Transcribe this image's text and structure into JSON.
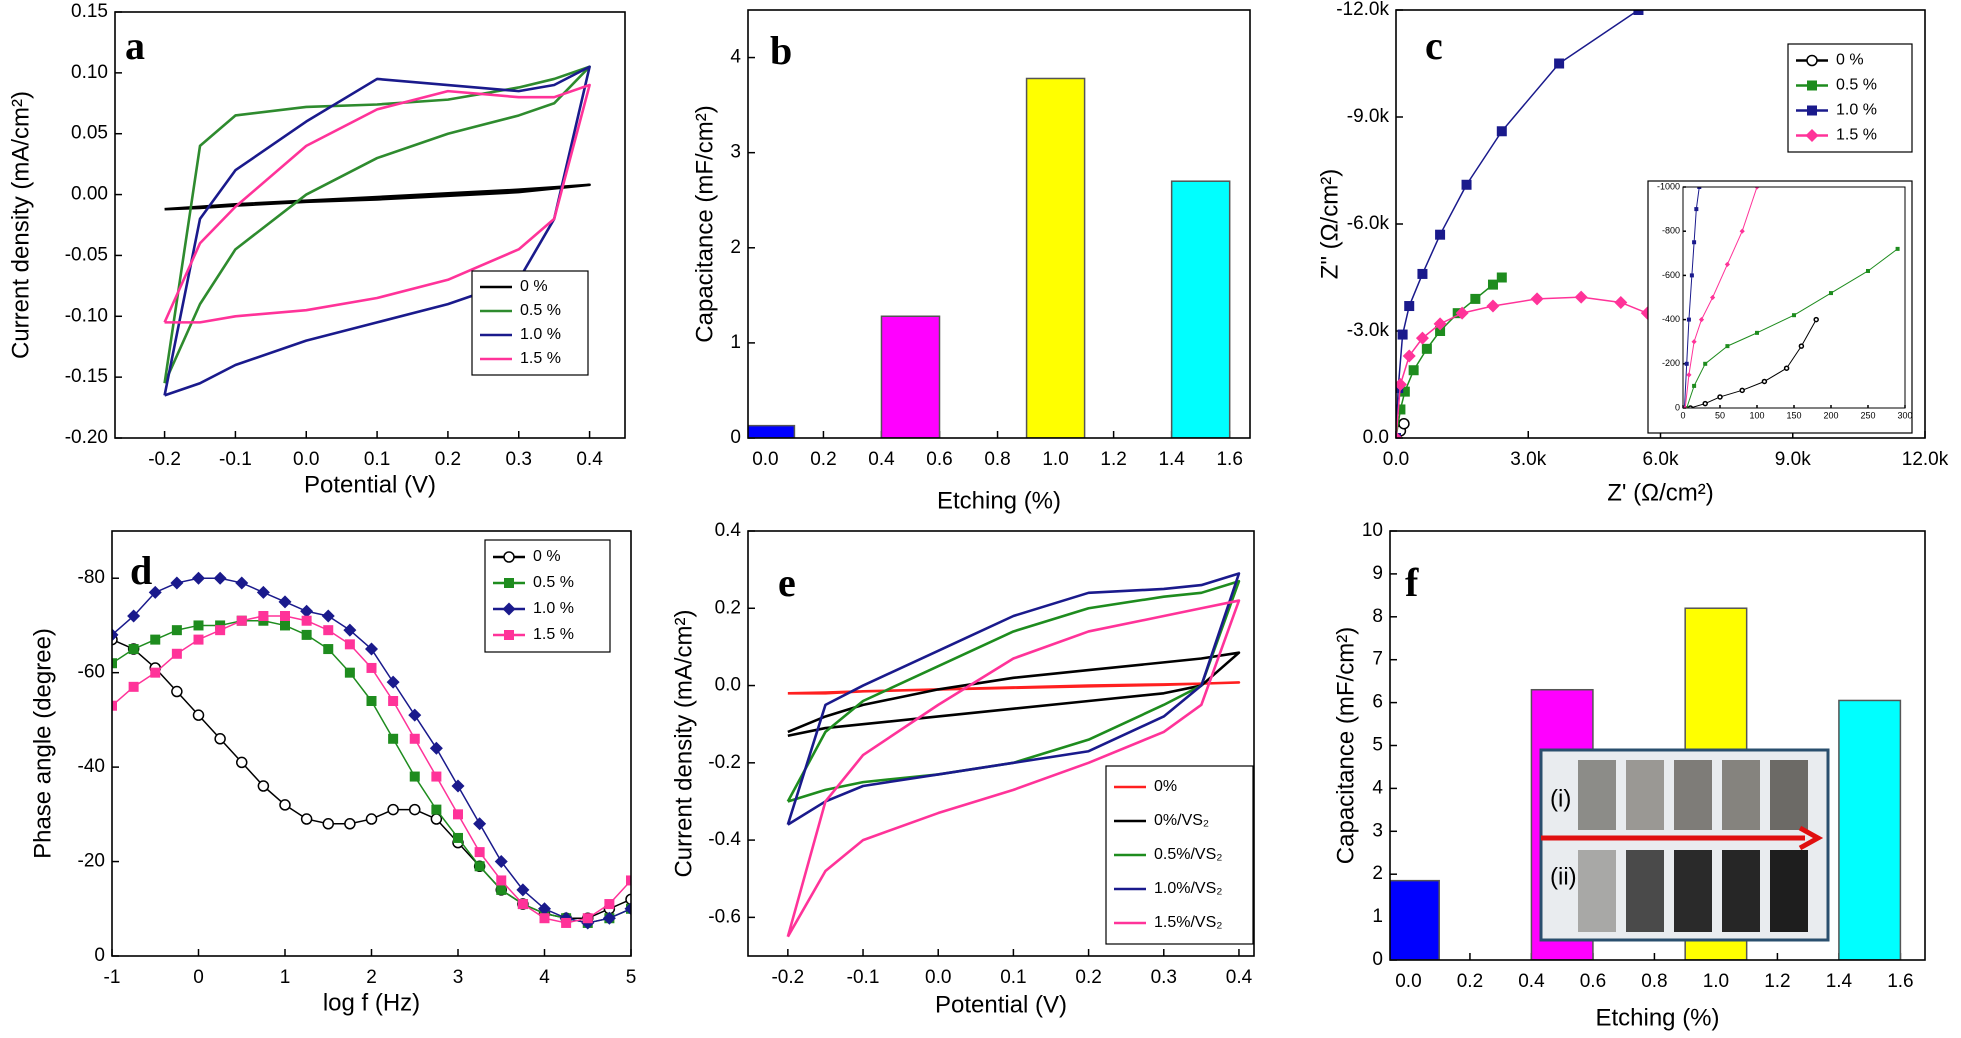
{
  "chart_data": [
    {
      "type": "line",
      "label": "a",
      "xlabel": "Potential (V)",
      "ylabel": "Current density (mA/cm²)",
      "xlim": [
        -0.27,
        0.45
      ],
      "ylim": [
        -0.2,
        0.15
      ],
      "xticks": [
        -0.2,
        -0.1,
        {
          "value": 0,
          "label": "0.0"
        },
        0.1,
        0.2,
        0.3,
        0.4
      ],
      "yticks": [
        {
          "value": -0.2,
          "label": "-0.20"
        },
        -0.15,
        {
          "value": -0.1,
          "label": "-0.10"
        },
        -0.05,
        {
          "value": 0,
          "label": "0.00"
        },
        0.05,
        {
          "value": 0.1,
          "label": "0.10"
        },
        0.15
      ],
      "legend": "lower right",
      "x": [
        -0.2,
        -0.15,
        -0.1,
        0,
        0.1,
        0.2,
        0.3,
        0.35,
        0.4,
        0.35,
        0.3,
        0.2,
        0.1,
        0,
        -0.1,
        -0.15,
        -0.2
      ],
      "series": [
        {
          "name": "0 %",
          "color": "#000000",
          "values": [
            -0.012,
            -0.01,
            -0.008,
            -0.005,
            -0.002,
            0.001,
            0.004,
            0.006,
            0.008,
            0.005,
            0.002,
            -0.001,
            -0.004,
            -0.006,
            -0.009,
            -0.011,
            -0.012
          ]
        },
        {
          "name": "0.5 %",
          "color": "#2e8b2e",
          "values": [
            -0.155,
            0.04,
            0.065,
            0.072,
            0.074,
            0.078,
            0.088,
            0.095,
            0.105,
            0.075,
            0.065,
            0.05,
            0.03,
            0.0,
            -0.045,
            -0.09,
            -0.155
          ]
        },
        {
          "name": "1.0 %",
          "color": "#1a1a8c",
          "values": [
            -0.165,
            -0.02,
            0.02,
            0.06,
            0.095,
            0.09,
            0.085,
            0.09,
            0.105,
            -0.02,
            -0.07,
            -0.09,
            -0.105,
            -0.12,
            -0.14,
            -0.155,
            -0.165
          ]
        },
        {
          "name": "1.5 %",
          "color": "#ff3399",
          "values": [
            -0.105,
            -0.105,
            -0.1,
            -0.095,
            -0.085,
            -0.07,
            -0.045,
            -0.02,
            0.09,
            0.08,
            0.08,
            0.085,
            0.07,
            0.04,
            -0.01,
            -0.04,
            -0.105
          ]
        }
      ]
    },
    {
      "type": "bar",
      "label": "b",
      "xlabel": "Etching (%)",
      "ylabel": "Capacitance (mF/cm²)",
      "xlim": [
        -0.06,
        1.67
      ],
      "ylim": [
        0,
        4.5
      ],
      "xticks": [
        {
          "value": 0,
          "label": "0.0"
        },
        0.2,
        0.4,
        0.6,
        0.8,
        {
          "value": 1,
          "label": "1.0"
        },
        1.2,
        1.4,
        1.6
      ],
      "yticks": [
        0,
        1,
        2,
        3,
        4
      ],
      "x": [
        0,
        0.5,
        1.0,
        1.5
      ],
      "values": [
        0.13,
        1.28,
        3.78,
        2.7
      ],
      "colors": [
        "#0000ff",
        "#ff00ff",
        "#ffff00",
        "#00ffff"
      ]
    },
    {
      "type": "line",
      "label": "c",
      "xlabel": "Z' (Ω/cm²)",
      "ylabel": "Z\" (Ω/cm²)",
      "xlim": [
        0,
        12000
      ],
      "ylim": [
        0,
        -12000
      ],
      "xticks": [
        {
          "value": 0,
          "label": "0.0"
        },
        {
          "value": 3000,
          "label": "3.0k"
        },
        {
          "value": 6000,
          "label": "6.0k"
        },
        {
          "value": 9000,
          "label": "9.0k"
        },
        {
          "value": 12000,
          "label": "12.0k"
        }
      ],
      "yticks": [
        {
          "value": 0,
          "label": "0.0"
        },
        {
          "value": -3000,
          "label": "-3.0k"
        },
        {
          "value": -6000,
          "label": "-6.0k"
        },
        {
          "value": -9000,
          "label": "-9.0k"
        },
        {
          "value": -12000,
          "label": "-12.0k"
        }
      ],
      "legend": "upper right",
      "series": [
        {
          "name": "0 %",
          "color": "#000000",
          "marker": "circle",
          "x": [
            0,
            100,
            180
          ],
          "values": [
            0,
            -200,
            -400
          ]
        },
        {
          "name": "0.5 %",
          "color": "#1e8c1e",
          "marker": "square",
          "x": [
            0,
            100,
            200,
            400,
            700,
            1000,
            1400,
            1800,
            2200,
            2400
          ],
          "values": [
            0,
            -800,
            -1300,
            -1900,
            -2500,
            -3000,
            -3500,
            -3900,
            -4300,
            -4500
          ]
        },
        {
          "name": "1.0 %",
          "color": "#1a1a8c",
          "marker": "square",
          "x": [
            0,
            50,
            150,
            300,
            600,
            1000,
            1600,
            2400,
            3700,
            5500
          ],
          "values": [
            0,
            -1400,
            -2900,
            -3700,
            -4600,
            -5700,
            -7100,
            -8600,
            -10500,
            -12000
          ]
        },
        {
          "name": "1.5 %",
          "color": "#ff3399",
          "marker": "diamond",
          "x": [
            0,
            100,
            300,
            600,
            1000,
            1500,
            2200,
            3200,
            4200,
            5100,
            5700
          ],
          "values": [
            0,
            -1500,
            -2300,
            -2800,
            -3200,
            -3500,
            -3700,
            -3900,
            -3950,
            -3800,
            -3500
          ]
        }
      ],
      "inset": {
        "xlim": [
          0,
          300
        ],
        "ylim": [
          0,
          -1000
        ],
        "xticks": [
          0,
          50,
          100,
          150,
          200,
          250,
          300
        ],
        "yticks": [
          0,
          -200,
          -400,
          -600,
          -800,
          -1000
        ],
        "series": [
          {
            "color": "#000000",
            "marker": "circle",
            "x": [
              10,
              30,
              50,
              80,
              110,
              140,
              160,
              180
            ],
            "values": [
              0,
              -20,
              -50,
              -80,
              -120,
              -180,
              -280,
              -400
            ]
          },
          {
            "color": "#1e8c1e",
            "marker": "square",
            "x": [
              5,
              15,
              30,
              60,
              100,
              150,
              200,
              250,
              290
            ],
            "values": [
              0,
              -100,
              -200,
              -280,
              -340,
              -420,
              -520,
              -620,
              -720
            ]
          },
          {
            "color": "#1a1a8c",
            "marker": "square",
            "x": [
              2,
              5,
              8,
              12,
              15,
              18,
              22
            ],
            "values": [
              0,
              -200,
              -400,
              -600,
              -750,
              -900,
              -1000
            ]
          },
          {
            "color": "#ff3399",
            "marker": "diamond",
            "x": [
              3,
              8,
              15,
              25,
              40,
              60,
              80,
              100
            ],
            "values": [
              0,
              -150,
              -300,
              -400,
              -500,
              -650,
              -800,
              -1000
            ]
          }
        ]
      }
    },
    {
      "type": "line",
      "label": "d",
      "xlabel": "log f (Hz)",
      "ylabel": "Phase angle (degree)",
      "xlim": [
        -1,
        5
      ],
      "ylim": [
        0,
        -90
      ],
      "xticks": [
        -1,
        0,
        1,
        2,
        3,
        4,
        5
      ],
      "yticks": [
        0,
        -20,
        -40,
        -60,
        -80
      ],
      "legend": "upper right",
      "x": [
        -1,
        -0.75,
        -0.5,
        -0.25,
        0,
        0.25,
        0.5,
        0.75,
        1,
        1.25,
        1.5,
        1.75,
        2,
        2.25,
        2.5,
        2.75,
        3,
        3.25,
        3.5,
        3.75,
        4,
        4.25,
        4.5,
        4.75,
        5
      ],
      "series": [
        {
          "name": "0 %",
          "color": "#000000",
          "marker": "circle",
          "values": [
            -67,
            -65,
            -61,
            -56,
            -51,
            -46,
            -41,
            -36,
            -32,
            -29,
            -28,
            -28,
            -29,
            -31,
            -31,
            -29,
            -24,
            -19,
            -14,
            -11,
            -9,
            -8,
            -8,
            -10,
            -12
          ]
        },
        {
          "name": "0.5 %",
          "color": "#1e8c1e",
          "marker": "square",
          "values": [
            -62,
            -65,
            -67,
            -69,
            -70,
            -70,
            -71,
            -71,
            -70,
            -68,
            -65,
            -60,
            -54,
            -46,
            -38,
            -31,
            -25,
            -19,
            -14,
            -11,
            -9,
            -8,
            -7,
            -8,
            -10
          ]
        },
        {
          "name": "1.0 %",
          "color": "#1a1a8c",
          "marker": "diamond",
          "values": [
            -68,
            -72,
            -77,
            -79,
            -80,
            -80,
            -79,
            -77,
            -75,
            -73,
            -72,
            -69,
            -65,
            -58,
            -51,
            -44,
            -36,
            -28,
            -20,
            -14,
            -10,
            -8,
            -7,
            -8,
            -10
          ]
        },
        {
          "name": "1.5 %",
          "color": "#ff3399",
          "marker": "square",
          "values": [
            -53,
            -57,
            -60,
            -64,
            -67,
            -69,
            -71,
            -72,
            -72,
            -71,
            -69,
            -66,
            -61,
            -54,
            -46,
            -38,
            -30,
            -22,
            -16,
            -11,
            -8,
            -7,
            -8,
            -11,
            -16
          ]
        }
      ]
    },
    {
      "type": "line",
      "label": "e",
      "xlabel": "Potential (V)",
      "ylabel": "Current density (mA/cm²)",
      "xlim": [
        -0.253,
        0.42
      ],
      "ylim": [
        -0.7,
        0.4
      ],
      "xticks": [
        -0.2,
        -0.1,
        {
          "value": 0,
          "label": "0.0"
        },
        0.1,
        0.2,
        0.3,
        0.4
      ],
      "yticks": [
        0.4,
        0.2,
        {
          "value": 0,
          "label": "0.0"
        },
        -0.2,
        -0.4,
        -0.6
      ],
      "legend": "lower right",
      "x": [
        -0.2,
        -0.15,
        -0.1,
        0,
        0.1,
        0.2,
        0.3,
        0.35,
        0.4,
        0.35,
        0.3,
        0.2,
        0.1,
        0,
        -0.1,
        -0.15,
        -0.2
      ],
      "series": [
        {
          "name": "0%",
          "color": "#ff2020",
          "values": [
            -0.02,
            -0.02,
            -0.015,
            -0.01,
            -0.005,
            0,
            0.003,
            0.005,
            0.008,
            0.005,
            0.002,
            -0.002,
            -0.006,
            -0.01,
            -0.015,
            -0.018,
            -0.02
          ]
        },
        {
          "name": "0%/VS₂",
          "color": "#000000",
          "values": [
            -0.12,
            -0.08,
            -0.05,
            -0.01,
            0.02,
            0.04,
            0.06,
            0.07,
            0.085,
            0.0,
            -0.02,
            -0.04,
            -0.06,
            -0.08,
            -0.1,
            -0.11,
            -0.13
          ]
        },
        {
          "name": "0.5%/VS₂",
          "color": "#1e8c1e",
          "values": [
            -0.3,
            -0.12,
            -0.04,
            0.05,
            0.14,
            0.2,
            0.23,
            0.24,
            0.27,
            0.0,
            -0.05,
            -0.14,
            -0.2,
            -0.23,
            -0.25,
            -0.27,
            -0.3
          ]
        },
        {
          "name": "1.0%/VS₂",
          "color": "#1a1a8c",
          "values": [
            -0.36,
            -0.05,
            0.0,
            0.09,
            0.18,
            0.24,
            0.25,
            0.26,
            0.29,
            0.0,
            -0.08,
            -0.17,
            -0.2,
            -0.23,
            -0.26,
            -0.3,
            -0.36
          ]
        },
        {
          "name": "1.5%/VS₂",
          "color": "#ff3399",
          "values": [
            -0.65,
            -0.3,
            -0.18,
            -0.05,
            0.07,
            0.14,
            0.18,
            0.2,
            0.22,
            -0.05,
            -0.12,
            -0.2,
            -0.27,
            -0.33,
            -0.4,
            -0.48,
            -0.65
          ]
        }
      ]
    },
    {
      "type": "bar",
      "label": "f",
      "xlabel": "Etching (%)",
      "ylabel": "Capacitance (mF/cm²)",
      "xlim": [
        -0.06,
        1.68
      ],
      "ylim": [
        0,
        10
      ],
      "xticks": [
        {
          "value": 0,
          "label": "0.0"
        },
        0.2,
        0.4,
        0.6,
        0.8,
        {
          "value": 1,
          "label": "1.0"
        },
        1.2,
        1.4,
        1.6
      ],
      "yticks": [
        0,
        1,
        2,
        3,
        4,
        5,
        6,
        7,
        8,
        9,
        10
      ],
      "x": [
        0,
        0.5,
        1.0,
        1.5
      ],
      "values": [
        1.85,
        6.3,
        8.2,
        6.05
      ],
      "colors": [
        "#0000ff",
        "#ff00ff",
        "#ffff00",
        "#00ffff"
      ],
      "inset_labels": [
        "(i)",
        "(ii)"
      ]
    }
  ]
}
